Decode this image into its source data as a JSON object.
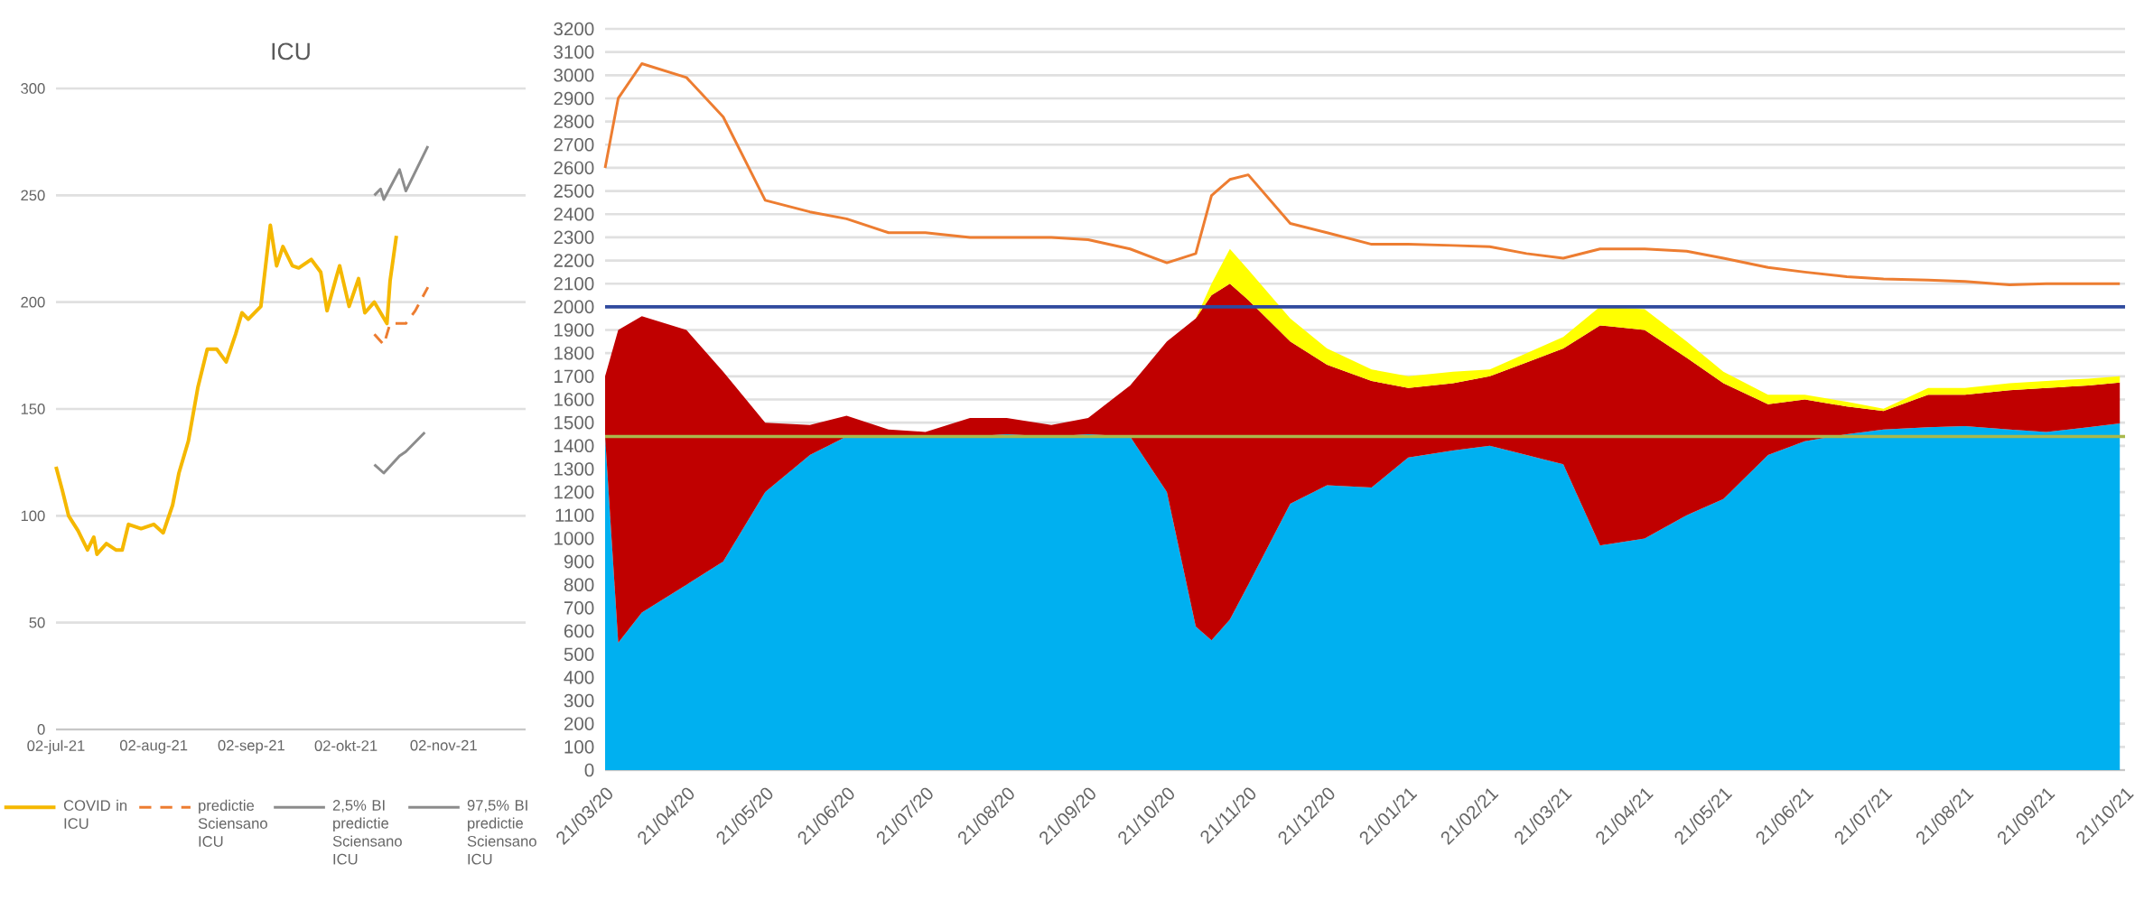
{
  "chart_data": [
    {
      "type": "line",
      "title": "ICU",
      "xlim": [
        "2021-07-02",
        "2021-11-28"
      ],
      "ylim": [
        0,
        300
      ],
      "yticks": [
        0,
        50,
        100,
        150,
        200,
        250,
        300
      ],
      "xticks": [
        {
          "value": "2021-07-02",
          "label": "02-jul-21"
        },
        {
          "value": "2021-08-02",
          "label": "02-aug-21"
        },
        {
          "value": "2021-09-02",
          "label": "02-sep-21"
        },
        {
          "value": "2021-10-02",
          "label": "02-okt-21"
        },
        {
          "value": "2021-11-02",
          "label": "02-nov-21"
        }
      ],
      "grid": "y",
      "legend": "bottom",
      "series": [
        {
          "name": "COVID in ICU",
          "color": "#f5b800",
          "line_style": "solid",
          "x": [
            "2021-07-02",
            "2021-07-04",
            "2021-07-06",
            "2021-07-09",
            "2021-07-12",
            "2021-07-14",
            "2021-07-15",
            "2021-07-18",
            "2021-07-21",
            "2021-07-23",
            "2021-07-25",
            "2021-07-29",
            "2021-08-02",
            "2021-08-05",
            "2021-08-08",
            "2021-08-10",
            "2021-08-13",
            "2021-08-16",
            "2021-08-19",
            "2021-08-22",
            "2021-08-25",
            "2021-08-28",
            "2021-08-30",
            "2021-09-01",
            "2021-09-05",
            "2021-09-08",
            "2021-09-10",
            "2021-09-12",
            "2021-09-15",
            "2021-09-17",
            "2021-09-21",
            "2021-09-24",
            "2021-09-26",
            "2021-09-29",
            "2021-09-30",
            "2021-10-03",
            "2021-10-06",
            "2021-10-08",
            "2021-10-11",
            "2021-10-15",
            "2021-10-16",
            "2021-10-18"
          ],
          "values": [
            123,
            112,
            100,
            93,
            84,
            90,
            82,
            87,
            84,
            84,
            96,
            94,
            96,
            92,
            105,
            120,
            135,
            160,
            178,
            178,
            172,
            185,
            195,
            192,
            198,
            236,
            217,
            226,
            217,
            216,
            220,
            214,
            196,
            212,
            217,
            198,
            211,
            195,
            200,
            190,
            210,
            231
          ]
        },
        {
          "name": "predictie Sciensano ICU",
          "color": "#ed7d31",
          "line_style": "dashed",
          "x": [
            "2021-10-11",
            "2021-10-14",
            "2021-10-16",
            "2021-10-21",
            "2021-10-24",
            "2021-10-28"
          ],
          "values": [
            185,
            180,
            190,
            190,
            196,
            207
          ]
        },
        {
          "name": "2,5% BI predictie Sciensano ICU",
          "color": "#8c8c8c",
          "line_style": "solid",
          "x": [
            "2021-10-11",
            "2021-10-14",
            "2021-10-19",
            "2021-10-21",
            "2021-10-27"
          ],
          "values": [
            124,
            120,
            128,
            130,
            139
          ]
        },
        {
          "name": "97,5% BI predictie Sciensano ICU",
          "color": "#8c8c8c",
          "line_style": "solid",
          "x": [
            "2021-10-11",
            "2021-10-13",
            "2021-10-14",
            "2021-10-19",
            "2021-10-21",
            "2021-10-28"
          ],
          "values": [
            250,
            253,
            248,
            262,
            252,
            273
          ]
        }
      ]
    },
    {
      "type": "area",
      "stacked": true,
      "grid": "y",
      "xlim": [
        "2020-03-21",
        "2021-10-21"
      ],
      "ylim": [
        0,
        3200
      ],
      "yticks": [
        0,
        100,
        200,
        300,
        400,
        500,
        600,
        700,
        800,
        900,
        1000,
        1100,
        1200,
        1300,
        1400,
        1500,
        1600,
        1700,
        1800,
        1900,
        2000,
        2100,
        2200,
        2300,
        2400,
        2500,
        2600,
        2700,
        2800,
        2900,
        3000,
        3100,
        3200
      ],
      "xticks": [
        {
          "value": "2020-03-21",
          "label": "21/03/20"
        },
        {
          "value": "2020-04-21",
          "label": "21/04/20"
        },
        {
          "value": "2020-05-21",
          "label": "21/05/20"
        },
        {
          "value": "2020-06-21",
          "label": "21/06/20"
        },
        {
          "value": "2020-07-21",
          "label": "21/07/20"
        },
        {
          "value": "2020-08-21",
          "label": "21/08/20"
        },
        {
          "value": "2020-09-21",
          "label": "21/09/20"
        },
        {
          "value": "2020-10-21",
          "label": "21/10/20"
        },
        {
          "value": "2020-11-21",
          "label": "21/11/20"
        },
        {
          "value": "2020-12-21",
          "label": "21/12/20"
        },
        {
          "value": "2021-01-21",
          "label": "21/01/21"
        },
        {
          "value": "2021-02-21",
          "label": "21/02/21"
        },
        {
          "value": "2021-03-21",
          "label": "21/03/21"
        },
        {
          "value": "2021-04-21",
          "label": "21/04/21"
        },
        {
          "value": "2021-05-21",
          "label": "21/05/21"
        },
        {
          "value": "2021-06-21",
          "label": "21/06/21"
        },
        {
          "value": "2021-07-21",
          "label": "21/07/21"
        },
        {
          "value": "2021-08-21",
          "label": "21/08/21"
        },
        {
          "value": "2021-09-21",
          "label": "21/09/21"
        },
        {
          "value": "2021-10-21",
          "label": "21/10/21"
        }
      ],
      "x": [
        "2020-03-21",
        "2020-03-26",
        "2020-04-04",
        "2020-04-21",
        "2020-05-05",
        "2020-05-21",
        "2020-06-07",
        "2020-06-21",
        "2020-07-07",
        "2020-07-21",
        "2020-08-07",
        "2020-08-21",
        "2020-09-07",
        "2020-09-21",
        "2020-10-07",
        "2020-10-21",
        "2020-11-01",
        "2020-11-07",
        "2020-11-14",
        "2020-11-21",
        "2020-12-07",
        "2020-12-21",
        "2021-01-07",
        "2021-01-21",
        "2021-02-07",
        "2021-02-21",
        "2021-03-07",
        "2021-03-21",
        "2021-04-04",
        "2021-04-21",
        "2021-05-07",
        "2021-05-21",
        "2021-06-07",
        "2021-06-21",
        "2021-07-07",
        "2021-07-21",
        "2021-08-07",
        "2021-08-21",
        "2021-09-07",
        "2021-09-21",
        "2021-10-07",
        "2021-10-19"
      ],
      "series": [
        {
          "color": "#00b0f0",
          "values": [
            1440,
            550,
            680,
            800,
            900,
            1200,
            1360,
            1440,
            1440,
            1440,
            1440,
            1450,
            1440,
            1450,
            1440,
            1200,
            620,
            560,
            650,
            800,
            1150,
            1230,
            1220,
            1350,
            1380,
            1400,
            1360,
            1320,
            970,
            1000,
            1100,
            1170,
            1360,
            1420,
            1450,
            1470,
            1480,
            1485,
            1470,
            1460,
            1480,
            1497
          ]
        },
        {
          "color": "#c00000",
          "values": [
            260,
            1350,
            1280,
            1100,
            820,
            300,
            130,
            90,
            30,
            20,
            80,
            70,
            50,
            70,
            220,
            650,
            1330,
            1490,
            1450,
            1230,
            700,
            520,
            460,
            300,
            290,
            300,
            400,
            500,
            950,
            900,
            680,
            500,
            220,
            180,
            120,
            80,
            140,
            135,
            170,
            190,
            180,
            176
          ]
        },
        {
          "color": "#ffff00",
          "values": [
            0,
            0,
            0,
            0,
            0,
            0,
            0,
            0,
            0,
            0,
            0,
            0,
            0,
            0,
            0,
            0,
            0,
            50,
            150,
            130,
            100,
            70,
            50,
            50,
            50,
            30,
            40,
            50,
            80,
            90,
            70,
            50,
            40,
            20,
            20,
            10,
            30,
            30,
            30,
            30,
            30,
            27
          ]
        },
        {
          "type": "line",
          "color": "#ed7d31",
          "values": [
            2600,
            2900,
            3050,
            2990,
            2820,
            2460,
            2410,
            2380,
            2320,
            2320,
            2300,
            2300,
            2300,
            2290,
            2250,
            2190,
            2230,
            2480,
            2550,
            2570,
            2360,
            2320,
            2270,
            2270,
            2265,
            2260,
            2230,
            2210,
            2250,
            2250,
            2240,
            2210,
            2170,
            2150,
            2130,
            2120,
            2115,
            2110,
            2095,
            2100,
            2100,
            2100
          ]
        }
      ],
      "ref_lines": [
        {
          "axis": "y",
          "value": 2000,
          "color": "#2f4a9e"
        },
        {
          "axis": "y",
          "value": 1440,
          "color": "#a9b84c"
        }
      ]
    }
  ]
}
